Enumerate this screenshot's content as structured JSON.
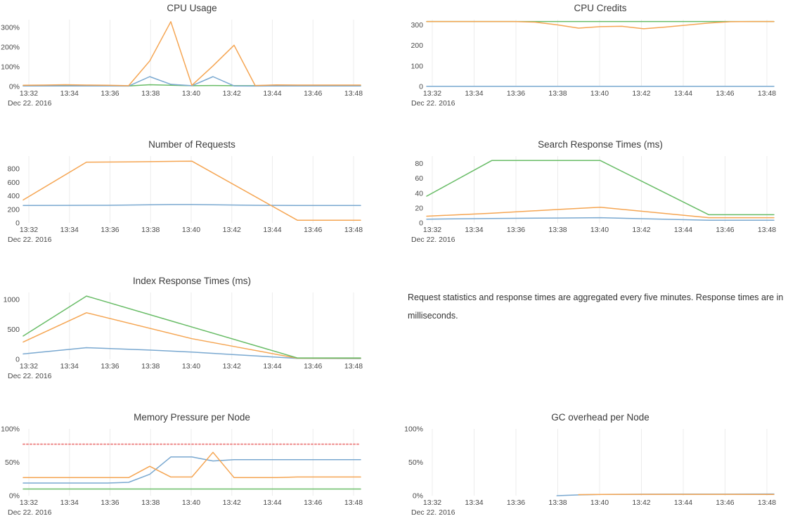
{
  "note": {
    "text": "Request statistics and response times are aggregated every five minutes. Response times are in milliseconds."
  },
  "axis": {
    "date_label": "Dec 22. 2016",
    "x_tick_labels": [
      "13:32",
      "13:34",
      "13:36",
      "13:38",
      "13:40",
      "13:42",
      "13:44",
      "13:46",
      "13:48"
    ]
  },
  "palette": {
    "blue": "#79a8d0",
    "orange": "#f5a552",
    "green": "#68bc66",
    "red": "#ee8888",
    "grid": "#ececec",
    "title_text": "#3b3b3b",
    "tick_text": "#4a4a4a"
  },
  "chart_data": [
    {
      "id": "cpu-usage",
      "type": "line",
      "title": "CPU Usage",
      "ylim": [
        0,
        340
      ],
      "x_range": [
        0,
        16
      ],
      "grid": "vertical",
      "legend": "none",
      "y_ticks": [
        {
          "value": 0,
          "label": "0%"
        },
        {
          "value": 100,
          "label": "100%"
        },
        {
          "value": 200,
          "label": "200%"
        },
        {
          "value": 300,
          "label": "300%"
        }
      ],
      "series": [
        {
          "name": "green",
          "color": "green",
          "points": [
            [
              0,
              4
            ],
            [
              1,
              4
            ],
            [
              2,
              5
            ],
            [
              3,
              4
            ],
            [
              4,
              4
            ],
            [
              5,
              3
            ],
            [
              6,
              9
            ],
            [
              7,
              6
            ],
            [
              8,
              4
            ],
            [
              9,
              5
            ],
            [
              10,
              4
            ],
            [
              11,
              4
            ],
            [
              12,
              4
            ],
            [
              13,
              4
            ],
            [
              14,
              4
            ],
            [
              15,
              4
            ],
            [
              16,
              4
            ]
          ]
        },
        {
          "name": "blue",
          "color": "blue",
          "points": [
            [
              0,
              3
            ],
            [
              1,
              3
            ],
            [
              2,
              3
            ],
            [
              3,
              3
            ],
            [
              4,
              3
            ],
            [
              5,
              2
            ],
            [
              6,
              50
            ],
            [
              7,
              11
            ],
            [
              8,
              4
            ],
            [
              9,
              50
            ],
            [
              10,
              3
            ],
            [
              11,
              2
            ],
            [
              12,
              3
            ],
            [
              13,
              3
            ],
            [
              14,
              3
            ],
            [
              15,
              3
            ],
            [
              16,
              3
            ]
          ]
        },
        {
          "name": "orange",
          "color": "orange",
          "points": [
            [
              0,
              6
            ],
            [
              1,
              7
            ],
            [
              2,
              9
            ],
            [
              3,
              7
            ],
            [
              4,
              6
            ],
            [
              5,
              4
            ],
            [
              6,
              130
            ],
            [
              7,
              330
            ],
            [
              8,
              6
            ],
            [
              9,
              105
            ],
            [
              10,
              210
            ],
            [
              11,
              5
            ],
            [
              12,
              8
            ],
            [
              13,
              7
            ],
            [
              14,
              7
            ],
            [
              15,
              7
            ],
            [
              16,
              7
            ]
          ]
        }
      ]
    },
    {
      "id": "cpu-credits",
      "type": "line",
      "title": "CPU Credits",
      "ylim": [
        0,
        325
      ],
      "x_range": [
        0,
        16
      ],
      "grid": "vertical",
      "legend": "none",
      "y_ticks": [
        {
          "value": 0,
          "label": "0"
        },
        {
          "value": 100,
          "label": "100"
        },
        {
          "value": 200,
          "label": "200"
        },
        {
          "value": 300,
          "label": "300"
        }
      ],
      "series": [
        {
          "name": "blue",
          "color": "blue",
          "points": [
            [
              0,
              1
            ],
            [
              16,
              1
            ]
          ]
        },
        {
          "name": "green",
          "color": "green",
          "points": [
            [
              0,
              316
            ],
            [
              16,
              316
            ]
          ]
        },
        {
          "name": "orange",
          "color": "orange",
          "points": [
            [
              0,
              316
            ],
            [
              1,
              316
            ],
            [
              2,
              316
            ],
            [
              3,
              316
            ],
            [
              4,
              316
            ],
            [
              5,
              313
            ],
            [
              6,
              300
            ],
            [
              7,
              284
            ],
            [
              8,
              291
            ],
            [
              9,
              293
            ],
            [
              10,
              281
            ],
            [
              11,
              289
            ],
            [
              12,
              299
            ],
            [
              13,
              309
            ],
            [
              14,
              315
            ],
            [
              15,
              316
            ],
            [
              16,
              316
            ]
          ]
        }
      ]
    },
    {
      "id": "number-of-requests",
      "type": "line",
      "title": "Number of Requests",
      "ylim": [
        0,
        990
      ],
      "x_range": [
        0,
        16
      ],
      "grid": "vertical",
      "legend": "none",
      "y_ticks": [
        {
          "value": 0,
          "label": "0"
        },
        {
          "value": 200,
          "label": "200"
        },
        {
          "value": 400,
          "label": "400"
        },
        {
          "value": 600,
          "label": "600"
        },
        {
          "value": 800,
          "label": "800"
        }
      ],
      "series": [
        {
          "name": "blue",
          "color": "blue",
          "points": [
            [
              0,
              258
            ],
            [
              2,
              259
            ],
            [
              4,
              261
            ],
            [
              6,
              268
            ],
            [
              7,
              272
            ],
            [
              8,
              272
            ],
            [
              9,
              269
            ],
            [
              10,
              265
            ],
            [
              11,
              261
            ],
            [
              12,
              259
            ],
            [
              13,
              257
            ],
            [
              16,
              257
            ]
          ]
        },
        {
          "name": "orange",
          "color": "orange",
          "points": [
            [
              0,
              340
            ],
            [
              3,
              900
            ],
            [
              5,
              905
            ],
            [
              8,
              915
            ],
            [
              13,
              40
            ],
            [
              16,
              40
            ]
          ]
        }
      ]
    },
    {
      "id": "search-response-times",
      "type": "line",
      "title": "Search Response Times (ms)",
      "ylim": [
        0,
        90
      ],
      "x_range": [
        0,
        16
      ],
      "grid": "vertical",
      "legend": "none",
      "y_ticks": [
        {
          "value": 0,
          "label": "0"
        },
        {
          "value": 20,
          "label": "20"
        },
        {
          "value": 40,
          "label": "40"
        },
        {
          "value": 60,
          "label": "60"
        },
        {
          "value": 80,
          "label": "80"
        }
      ],
      "series": [
        {
          "name": "blue",
          "color": "blue",
          "points": [
            [
              0,
              5
            ],
            [
              3,
              6
            ],
            [
              6,
              6.5
            ],
            [
              8,
              7
            ],
            [
              13,
              3.5
            ],
            [
              16,
              3.5
            ]
          ]
        },
        {
          "name": "orange",
          "color": "orange",
          "points": [
            [
              0,
              9
            ],
            [
              3,
              13
            ],
            [
              6,
              18
            ],
            [
              8,
              21
            ],
            [
              13,
              7
            ],
            [
              16,
              7
            ]
          ]
        },
        {
          "name": "green",
          "color": "green",
          "points": [
            [
              0,
              36
            ],
            [
              3,
              84
            ],
            [
              8,
              84
            ],
            [
              13,
              11
            ],
            [
              16,
              11
            ]
          ]
        }
      ]
    },
    {
      "id": "index-response-times",
      "type": "line",
      "title": "Index Response Times (ms)",
      "ylim": [
        0,
        1120
      ],
      "x_range": [
        0,
        16
      ],
      "grid": "vertical",
      "legend": "none",
      "y_ticks": [
        {
          "value": 0,
          "label": "0"
        },
        {
          "value": 500,
          "label": "500"
        },
        {
          "value": 1000,
          "label": "1000"
        }
      ],
      "series": [
        {
          "name": "blue",
          "color": "blue",
          "points": [
            [
              0,
              90
            ],
            [
              3,
              195
            ],
            [
              6,
              155
            ],
            [
              8,
              120
            ],
            [
              10,
              78
            ],
            [
              13,
              15
            ],
            [
              16,
              12
            ]
          ]
        },
        {
          "name": "orange",
          "color": "orange",
          "points": [
            [
              0,
              290
            ],
            [
              3,
              780
            ],
            [
              8,
              345
            ],
            [
              10,
              215
            ],
            [
              13,
              18
            ],
            [
              16,
              18
            ]
          ]
        },
        {
          "name": "green",
          "color": "green",
          "points": [
            [
              0,
              390
            ],
            [
              3,
              1060
            ],
            [
              13,
              22
            ],
            [
              16,
              22
            ]
          ]
        }
      ]
    },
    {
      "id": "memory-pressure",
      "type": "line",
      "title": "Memory Pressure per Node",
      "ylim": [
        0,
        100
      ],
      "x_range": [
        0,
        16
      ],
      "grid": "vertical",
      "legend": "none",
      "y_ticks": [
        {
          "value": 0,
          "label": "0%"
        },
        {
          "value": 50,
          "label": "50%"
        },
        {
          "value": 100,
          "label": "100%"
        }
      ],
      "series": [
        {
          "name": "green",
          "color": "green",
          "points": [
            [
              0,
              10
            ],
            [
              16,
              10
            ]
          ]
        },
        {
          "name": "blue",
          "color": "blue",
          "points": [
            [
              0,
              19
            ],
            [
              1,
              19
            ],
            [
              2,
              19
            ],
            [
              3,
              19
            ],
            [
              4,
              19
            ],
            [
              5,
              20
            ],
            [
              6,
              32
            ],
            [
              7,
              58
            ],
            [
              8,
              58
            ],
            [
              9,
              52
            ],
            [
              10,
              54
            ],
            [
              11,
              54
            ],
            [
              12,
              54
            ],
            [
              13,
              54
            ],
            [
              14,
              54
            ],
            [
              15,
              54
            ],
            [
              16,
              54
            ]
          ]
        },
        {
          "name": "orange",
          "color": "orange",
          "points": [
            [
              0,
              27
            ],
            [
              1,
              27
            ],
            [
              2,
              27
            ],
            [
              3,
              27
            ],
            [
              4,
              27
            ],
            [
              5,
              27
            ],
            [
              6,
              44
            ],
            [
              7,
              28
            ],
            [
              8,
              28
            ],
            [
              9,
              65
            ],
            [
              10,
              27
            ],
            [
              11,
              27
            ],
            [
              12,
              27
            ],
            [
              13,
              28
            ],
            [
              14,
              28
            ],
            [
              15,
              28
            ],
            [
              16,
              28
            ]
          ]
        },
        {
          "name": "threshold",
          "color": "red",
          "dash": "2,3",
          "width": 2,
          "points": [
            [
              0,
              77
            ],
            [
              16,
              77
            ]
          ]
        }
      ]
    },
    {
      "id": "gc-overhead",
      "type": "line",
      "title": "GC overhead per Node",
      "ylim": [
        0,
        100
      ],
      "x_range": [
        0,
        16
      ],
      "grid": "vertical",
      "legend": "none",
      "y_ticks": [
        {
          "value": 0,
          "label": "0%"
        },
        {
          "value": 50,
          "label": "50%"
        },
        {
          "value": 100,
          "label": "100%"
        }
      ],
      "series": [
        {
          "name": "blue",
          "color": "blue",
          "points": [
            [
              6,
              0
            ],
            [
              7,
              1.2
            ],
            [
              8,
              1.8
            ],
            [
              9,
              2
            ],
            [
              10,
              2.2
            ],
            [
              12,
              2.3
            ],
            [
              14,
              2.4
            ],
            [
              16,
              2.5
            ]
          ]
        },
        {
          "name": "orange",
          "color": "orange",
          "points": [
            [
              7,
              1.6
            ],
            [
              8,
              1.8
            ],
            [
              9,
              2
            ],
            [
              10,
              2
            ],
            [
              12,
              2
            ],
            [
              14,
              2
            ],
            [
              16,
              1.8
            ]
          ]
        }
      ]
    }
  ]
}
